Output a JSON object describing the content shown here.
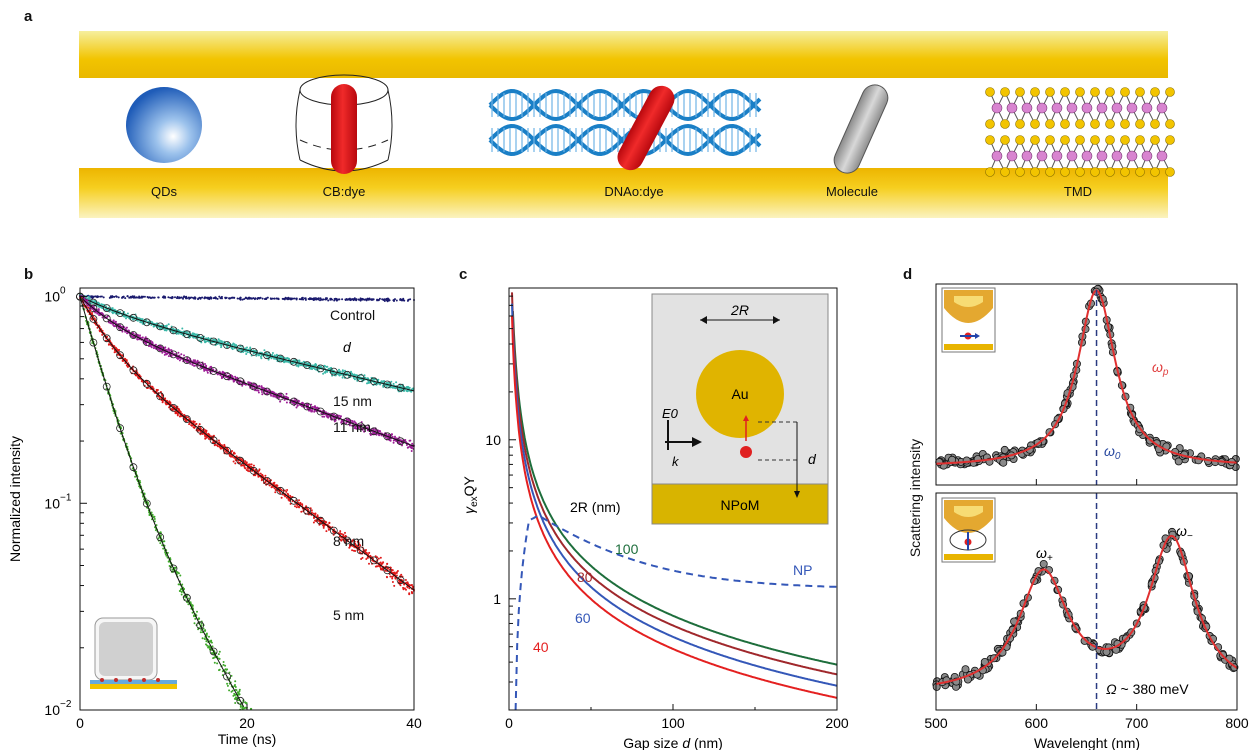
{
  "panel_labels": {
    "a": "a",
    "b": "b",
    "c": "c",
    "d": "d"
  },
  "panel_a": {
    "items": [
      "QDs",
      "CB:dye",
      "DNAo:dye",
      "Molecule",
      "TMD"
    ],
    "colors": {
      "gold": "#f4c400",
      "dye": "#e8141c",
      "dna": "#1a7fc6"
    }
  },
  "chart_data": [
    {
      "type": "scatter",
      "panel": "b",
      "xlabel": "Time (ns)",
      "ylabel": "Normalized intensity",
      "xlim": [
        0,
        40
      ],
      "ylim": [
        0.01,
        1.1
      ],
      "yscale": "log",
      "xticks": [
        "0",
        "20",
        "40"
      ],
      "yticks": [
        "10",
        "10",
        "10"
      ],
      "ytick_exp": [
        "0",
        "−1",
        "−2"
      ],
      "legend_title": "d",
      "series": [
        {
          "name": "Control",
          "color": "#1a1a6e",
          "tau1": 1000,
          "a": 1.0,
          "tau2": 1000
        },
        {
          "name": "15 nm",
          "color": "#3ab8a8",
          "tau1": 6,
          "a": 0.15,
          "tau2": 45
        },
        {
          "name": "11 nm",
          "color": "#9c1e96",
          "tau1": 4,
          "a": 0.25,
          "tau2": 29
        },
        {
          "name": "8 nm",
          "color": "#e01818",
          "tau1": 3.2,
          "a": 0.4,
          "tau2": 14.5
        },
        {
          "name": "5 nm",
          "color": "#3fa82a",
          "tau1": 2.7,
          "a": 0.8,
          "tau2": 6.5
        }
      ]
    },
    {
      "type": "line",
      "panel": "c",
      "xlabel": "Gap size d (nm)",
      "xlabel_main": "Gap size ",
      "xlabel_var": "d",
      "xlabel_unit": " (nm)",
      "ylabel": "γexQY",
      "xlim": [
        0,
        200
      ],
      "ylim": [
        0.2,
        90
      ],
      "yscale": "log",
      "xticks": [
        "0",
        "100",
        "200"
      ],
      "yticks": [
        "1",
        "10"
      ],
      "legend_title": "2R (nm)",
      "series": [
        {
          "name": "100",
          "color": "#1e6e3c",
          "end": 0.38
        },
        {
          "name": "80",
          "color": "#a0282c",
          "end": 0.33
        },
        {
          "name": "60",
          "color": "#3457b8",
          "end": 0.28
        },
        {
          "name": "40",
          "color": "#e42020",
          "end": 0.235
        },
        {
          "name": "NP",
          "color": "#3457b8",
          "dashed": true,
          "end": 1.15
        }
      ],
      "inset": {
        "diameter": "2R",
        "particle": "Au",
        "field": "E0",
        "wavevector": "k",
        "gap": "d",
        "substrate": "NPoM"
      }
    },
    {
      "type": "scatter",
      "panel": "d",
      "xlabel": "Wavelenght (nm)",
      "ylabel": "Scattering intensity",
      "xlim": [
        500,
        800
      ],
      "xticks": [
        "500",
        "600",
        "700",
        "800"
      ],
      "top": {
        "peak_label": "ωp",
        "line_label": "ω0",
        "peaks": [
          {
            "x": 660,
            "h": 1.0,
            "w": 23
          }
        ],
        "baseline": 0.1
      },
      "bottom": {
        "left_label": "ω+",
        "right_label": "ω−",
        "splitting": "Ω ~ 380 meV",
        "peaks": [
          {
            "x": 607,
            "h": 0.62,
            "w": 30
          },
          {
            "x": 735,
            "h": 0.8,
            "w": 28
          }
        ],
        "baseline": 0.08
      }
    }
  ]
}
